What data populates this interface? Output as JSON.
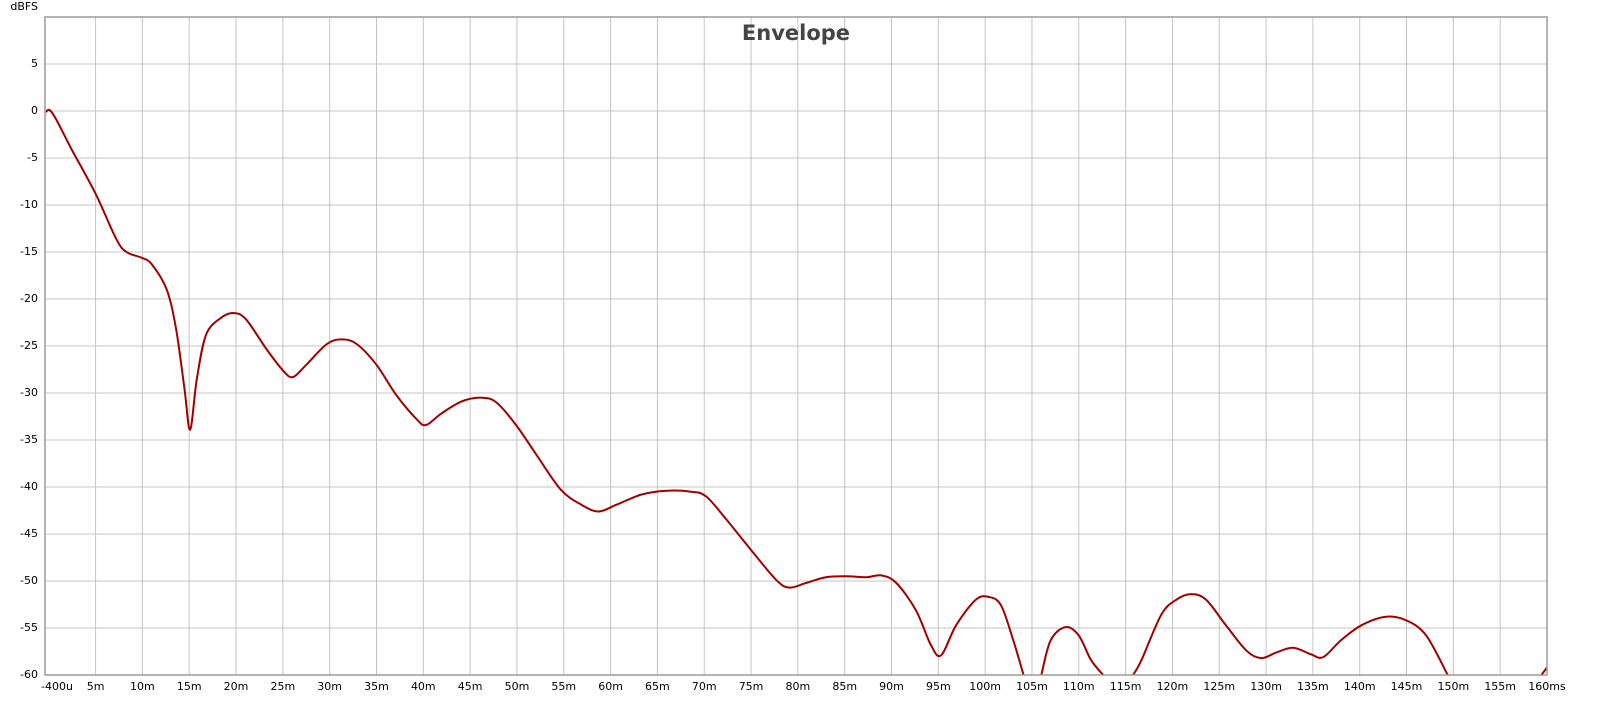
{
  "chart_data": {
    "type": "line",
    "title": "Envelope",
    "y_label": "dBFS",
    "grid": true,
    "xlim": [
      -0.4,
      160
    ],
    "ylim": [
      -60,
      10
    ],
    "xticks": [
      {
        "value": -0.4,
        "label": "-400u"
      },
      {
        "value": 5,
        "label": "5m"
      },
      {
        "value": 10,
        "label": "10m"
      },
      {
        "value": 15,
        "label": "15m"
      },
      {
        "value": 20,
        "label": "20m"
      },
      {
        "value": 25,
        "label": "25m"
      },
      {
        "value": 30,
        "label": "30m"
      },
      {
        "value": 35,
        "label": "35m"
      },
      {
        "value": 40,
        "label": "40m"
      },
      {
        "value": 45,
        "label": "45m"
      },
      {
        "value": 50,
        "label": "50m"
      },
      {
        "value": 55,
        "label": "55m"
      },
      {
        "value": 60,
        "label": "60m"
      },
      {
        "value": 65,
        "label": "65m"
      },
      {
        "value": 70,
        "label": "70m"
      },
      {
        "value": 75,
        "label": "75m"
      },
      {
        "value": 80,
        "label": "80m"
      },
      {
        "value": 85,
        "label": "85m"
      },
      {
        "value": 90,
        "label": "90m"
      },
      {
        "value": 95,
        "label": "95m"
      },
      {
        "value": 100,
        "label": "100m"
      },
      {
        "value": 105,
        "label": "105m"
      },
      {
        "value": 110,
        "label": "110m"
      },
      {
        "value": 115,
        "label": "115m"
      },
      {
        "value": 120,
        "label": "120m"
      },
      {
        "value": 125,
        "label": "125m"
      },
      {
        "value": 130,
        "label": "130m"
      },
      {
        "value": 135,
        "label": "135m"
      },
      {
        "value": 140,
        "label": "140m"
      },
      {
        "value": 145,
        "label": "145m"
      },
      {
        "value": 150,
        "label": "150m"
      },
      {
        "value": 155,
        "label": "155m"
      },
      {
        "value": 160,
        "label": "160ms"
      }
    ],
    "yticks": [
      5,
      0,
      -5,
      -10,
      -15,
      -20,
      -25,
      -30,
      -35,
      -40,
      -45,
      -50,
      -55,
      -60
    ],
    "x": [
      -0.3,
      0.1,
      0.8,
      2.4,
      5,
      7.2,
      8.3,
      9.9,
      11,
      12.6,
      13.6,
      14.5,
      15.1,
      15.8,
      16.8,
      18.4,
      19.8,
      21.1,
      23.3,
      25.1,
      26.1,
      27.5,
      29.7,
      31.3,
      32.9,
      35,
      37.1,
      39.3,
      40.3,
      41.9,
      44.1,
      46.2,
      47.8,
      49.9,
      52.1,
      54.7,
      56.9,
      58.7,
      60.6,
      63.3,
      66,
      68.6,
      70.2,
      72.4,
      75,
      77.7,
      79.1,
      80.9,
      83,
      85.2,
      87.3,
      88.9,
      90.5,
      92.6,
      94.2,
      95.3,
      96.9,
      99,
      100.4,
      101.7,
      103,
      104.1,
      105,
      106,
      107,
      108.6,
      110,
      111.3,
      112.6,
      114.2,
      115.8,
      116.7,
      118.8,
      120.4,
      122,
      123.6,
      125.7,
      127.9,
      129.5,
      131.1,
      132.9,
      134.8,
      136.1,
      138,
      140.2,
      142.8,
      145,
      147.1,
      149.4,
      154.4,
      159.4,
      160
    ],
    "series": [
      {
        "name": "Envelope",
        "color": "#a00000",
        "values": [
          -0.1,
          0.1,
          -0.9,
          -4,
          -8.8,
          -13.6,
          -15,
          -15.6,
          -16.3,
          -19,
          -23.2,
          -29.6,
          -33.9,
          -28.6,
          -23.8,
          -22,
          -21.5,
          -22.2,
          -25.4,
          -27.7,
          -28.3,
          -27,
          -24.8,
          -24.3,
          -24.8,
          -27,
          -30.2,
          -32.8,
          -33.4,
          -32.2,
          -30.9,
          -30.5,
          -31,
          -33.4,
          -36.6,
          -40.3,
          -41.9,
          -42.6,
          -41.9,
          -40.8,
          -40.4,
          -40.5,
          -41,
          -43.5,
          -46.7,
          -49.9,
          -50.7,
          -50.2,
          -49.6,
          -49.5,
          -49.6,
          -49.4,
          -50.2,
          -53.1,
          -56.8,
          -57.9,
          -54.7,
          -52,
          -51.7,
          -52.6,
          -56.3,
          -60,
          null,
          -60,
          -56.3,
          -54.9,
          -55.8,
          -58.4,
          -60,
          null,
          -60,
          -58.4,
          -53.6,
          -52,
          -51.4,
          -52,
          -54.7,
          -57.4,
          -58.2,
          -57.6,
          -57.1,
          -57.8,
          -58.1,
          -56.3,
          -54.7,
          -53.8,
          -54.2,
          -55.8,
          -60,
          null,
          -60,
          -59.2
        ]
      }
    ]
  }
}
